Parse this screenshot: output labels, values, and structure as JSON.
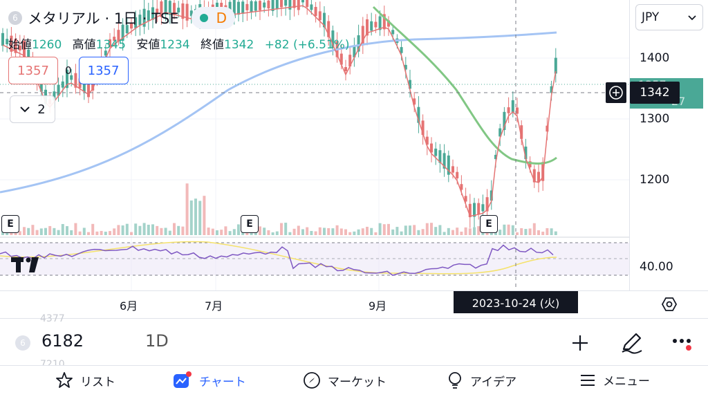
{
  "header": {
    "symbol_badge": "6",
    "title": "メタリアル · 1日 · TSE",
    "interval_badge": "D"
  },
  "ohlc": {
    "open_label": "始値",
    "open": "1260",
    "high_label": "高値",
    "high": "1345",
    "low_label": "安値",
    "low": "1234",
    "close_label": "終値",
    "close": "1342",
    "change": "+82 (+6.51%)"
  },
  "order": {
    "sell_price": "1357",
    "mid_qty": "0",
    "buy_price": "1357"
  },
  "collapse": {
    "count": "2"
  },
  "earnings_flag": "E",
  "price_scale": {
    "currency": "JPY",
    "ticks": [
      "1400",
      "1300",
      "1200"
    ],
    "last_price_top": "1357",
    "last_price_bottom": "27",
    "crosshair_price": "1342",
    "rsi_value": "40.00"
  },
  "time_axis": {
    "labels": [
      "6月",
      "7月",
      "9月"
    ],
    "crosshair_date": "2023-10-24 (火)"
  },
  "symbol_bar": {
    "badge": "6",
    "code": "6182",
    "interval": "1D",
    "ghost_top": "4377",
    "ghost_bottom": "7210"
  },
  "nav": {
    "list": "リスト",
    "chart": "チャート",
    "market": "マーケット",
    "idea": "アイデア",
    "menu": "メニュー"
  },
  "colors": {
    "up": "#4aa896",
    "down": "#e57373",
    "ma_fast": "#e57373",
    "ma_mid": "#81c784",
    "ma_slow": "#a4c4f4",
    "rsi": "#7e57c2",
    "rsi_ma": "#f5e26a",
    "accent": "#2962ff"
  }
}
